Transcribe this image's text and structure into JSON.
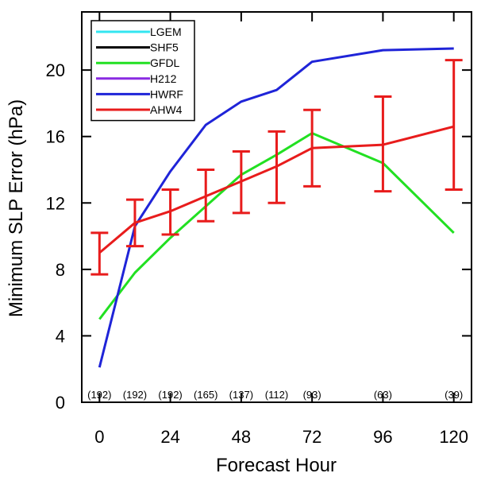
{
  "chart_data": {
    "type": "line",
    "title": "",
    "xlabel": "Forecast Hour",
    "ylabel": "Minimum SLP Error (hPa)",
    "xlim": [
      -6,
      126
    ],
    "ylim": [
      0,
      23.5
    ],
    "xticks": [
      0,
      24,
      48,
      72,
      96,
      120
    ],
    "yticks": [
      0,
      4,
      8,
      12,
      16,
      20
    ],
    "grid": false,
    "legend_position": "top-left",
    "series": [
      {
        "name": "LGEM",
        "color": "#33e6f0",
        "x": [],
        "y": []
      },
      {
        "name": "SHF5",
        "color": "#000000",
        "x": [],
        "y": []
      },
      {
        "name": "GFDL",
        "color": "#22e022",
        "x": [
          0,
          12,
          24,
          36,
          48,
          60,
          72,
          96,
          120
        ],
        "y": [
          5.0,
          7.8,
          9.9,
          11.8,
          13.7,
          14.9,
          16.2,
          14.4,
          10.2
        ]
      },
      {
        "name": "H212",
        "color": "#8a2be2",
        "x": [],
        "y": []
      },
      {
        "name": "HWRF",
        "color": "#1f24d8",
        "x": [
          0,
          12,
          24,
          36,
          48,
          60,
          72,
          96,
          120
        ],
        "y": [
          2.1,
          10.6,
          13.9,
          16.7,
          18.1,
          18.8,
          20.5,
          21.2,
          21.3
        ]
      },
      {
        "name": "AHW4",
        "color": "#e81c1c",
        "x": [
          0,
          12,
          24,
          36,
          48,
          60,
          72,
          96,
          120
        ],
        "y": [
          9.0,
          10.8,
          11.5,
          12.4,
          13.3,
          14.2,
          15.3,
          15.5,
          16.6
        ],
        "err_low": [
          7.7,
          9.4,
          10.1,
          10.9,
          11.4,
          12.0,
          13.0,
          12.7,
          12.8
        ],
        "err_high": [
          10.2,
          12.2,
          12.8,
          14.0,
          15.1,
          16.3,
          17.6,
          18.4,
          20.6
        ]
      }
    ],
    "count_labels": [
      {
        "x": 0,
        "text": "(192)"
      },
      {
        "x": 12,
        "text": "(192)"
      },
      {
        "x": 24,
        "text": "(192)"
      },
      {
        "x": 36,
        "text": "(165)"
      },
      {
        "x": 48,
        "text": "(137)"
      },
      {
        "x": 60,
        "text": "(112)"
      },
      {
        "x": 72,
        "text": "(93)"
      },
      {
        "x": 96,
        "text": "(63)"
      },
      {
        "x": 120,
        "text": "(39)"
      }
    ]
  }
}
